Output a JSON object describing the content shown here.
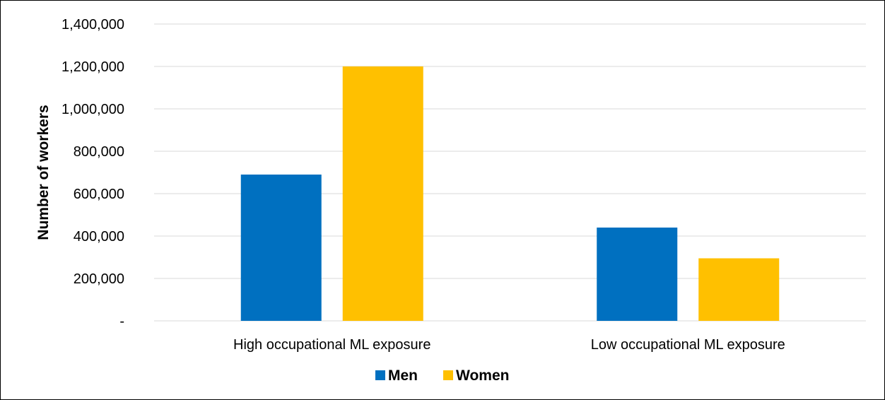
{
  "chart_data": {
    "type": "bar",
    "title": "",
    "xlabel": "",
    "ylabel": "Number of workers",
    "categories": [
      "High occupational ML exposure",
      "Low occupational ML exposure"
    ],
    "series": [
      {
        "name": "Men",
        "color": "#0070c0",
        "values": [
          690000,
          440000
        ]
      },
      {
        "name": "Women",
        "color": "#ffc000",
        "values": [
          1200000,
          295000
        ]
      }
    ],
    "ylim": [
      0,
      1400000
    ],
    "y_ticks": [
      {
        "value": 0,
        "label": "-"
      },
      {
        "value": 200000,
        "label": "200,000"
      },
      {
        "value": 400000,
        "label": "400,000"
      },
      {
        "value": 600000,
        "label": "600,000"
      },
      {
        "value": 800000,
        "label": "800,000"
      },
      {
        "value": 1000000,
        "label": "1,000,000"
      },
      {
        "value": 1200000,
        "label": "1,200,000"
      },
      {
        "value": 1400000,
        "label": "1,400,000"
      }
    ],
    "grid": true,
    "legend_position": "bottom"
  }
}
